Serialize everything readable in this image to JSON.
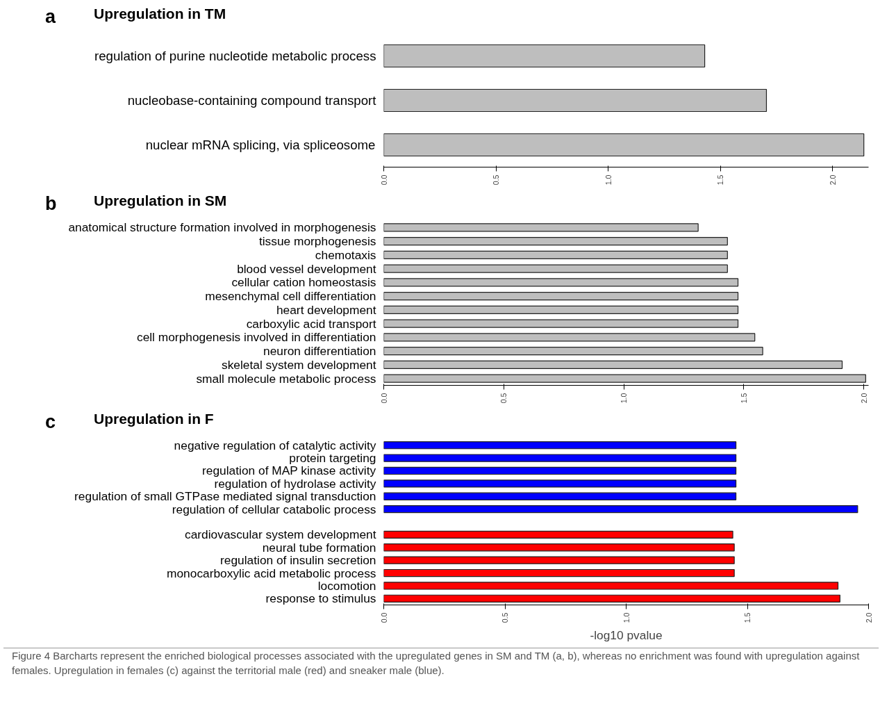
{
  "chart_data": [
    {
      "type": "bar",
      "orientation": "horizontal",
      "title": "Upregulation in TM",
      "annotations": [
        "a"
      ],
      "categories": [
        "regulation of purine nucleotide metabolic process",
        "nucleobase-containing compound transport",
        "nuclear mRNA splicing, via spliceosome"
      ],
      "values": [
        1.43,
        1.705,
        2.139
      ],
      "color": "#bebebe",
      "xlim": [
        0,
        2.16
      ],
      "xticks": [
        {
          "value": 0,
          "label": "0.0"
        },
        {
          "value": 0.5,
          "label": "0.5"
        },
        {
          "value": 1,
          "label": "1.0"
        },
        {
          "value": 1.5,
          "label": "1.5"
        },
        {
          "value": 2,
          "label": "2.0"
        }
      ],
      "grid": false
    },
    {
      "type": "bar",
      "orientation": "horizontal",
      "title": "Upregulation in SM",
      "annotations": [
        "b"
      ],
      "categories": [
        "anatomical structure formation involved in morphogenesis",
        "tissue morphogenesis",
        "chemotaxis",
        "blood vessel development",
        "cellular cation homeostasis",
        "mesenchymal cell differentiation",
        "heart development",
        "carboxylic acid transport",
        "cell morphogenesis involved in differentiation",
        "neuron differentiation",
        "skeletal system development",
        "small molecule metabolic process"
      ],
      "values": [
        1.31,
        1.432,
        1.432,
        1.432,
        1.476,
        1.476,
        1.476,
        1.476,
        1.546,
        1.579,
        1.91,
        2.008
      ],
      "color": "#bebebe",
      "xlim": [
        0,
        2.02
      ],
      "xticks": [
        {
          "value": 0,
          "label": "0.0"
        },
        {
          "value": 0.5,
          "label": "0.5"
        },
        {
          "value": 1,
          "label": "1.0"
        },
        {
          "value": 1.5,
          "label": "1.5"
        },
        {
          "value": 2,
          "label": "2.0"
        }
      ],
      "grid": false
    },
    {
      "type": "bar",
      "orientation": "horizontal",
      "title": "Upregulation in F",
      "xlabel": "-log10 pvalue",
      "annotations": [
        "c",
        "Figure 4 Barcharts represent the enriched biological processes associated with the upregulated genes in SM and TM (a, b), whereas no enrichment was found with upregulation against females. Upregulation in females (c) against the territorial male (red) and sneaker male (blue)."
      ],
      "categories": [
        "negative regulation of catalytic activity",
        "protein targeting",
        "regulation of MAP kinase activity",
        "regulation of hydrolase activity",
        "regulation of small GTPase mediated signal transduction",
        "regulation of cellular catabolic process",
        null,
        "cardiovascular system development",
        "neural tube formation",
        "regulation of insulin secretion",
        "monocarboxylic acid metabolic process",
        "locomotion",
        "response to stimulus"
      ],
      "series": [
        {
          "color": "#0000ff",
          "values": [
            1.453,
            1.453,
            1.453,
            1.453,
            1.453,
            1.955,
            null,
            null,
            null,
            null,
            null,
            null,
            null
          ]
        },
        {
          "color": "#ff0000",
          "values": [
            null,
            null,
            null,
            null,
            null,
            null,
            null,
            1.44,
            1.446,
            1.446,
            1.446,
            1.874,
            1.882
          ]
        }
      ],
      "xlim": [
        0,
        2.0
      ],
      "xticks": [
        {
          "value": 0,
          "label": "0.0"
        },
        {
          "value": 0.5,
          "label": "0.5"
        },
        {
          "value": 1,
          "label": "1.0"
        },
        {
          "value": 1.5,
          "label": "1.5"
        },
        {
          "value": 2,
          "label": "2.0"
        }
      ],
      "grid": false
    }
  ]
}
